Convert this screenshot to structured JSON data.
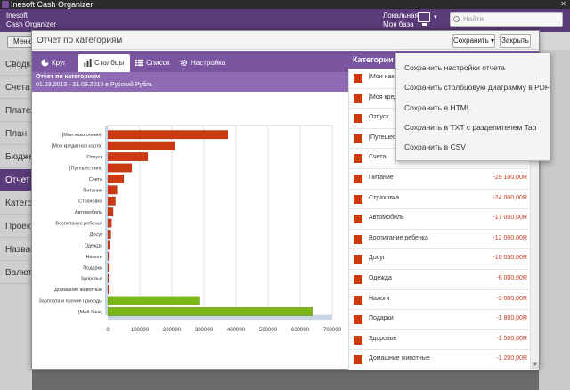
{
  "window": {
    "title": "Inesoft Cash Organizer",
    "close_glyph": "✕"
  },
  "header": {
    "brand_line1": "Inesoft",
    "brand_line2": "Cash Organizer",
    "db_line1": "Локальная",
    "db_line2": "Моя база",
    "search_placeholder": "Найти"
  },
  "menu_label": "Меню",
  "sidebar": [
    "Сводка",
    "Счета",
    "Платежи",
    "План",
    "Бюджет",
    "Отчет",
    "Категории",
    "Проекты",
    "Названия",
    "Валюта"
  ],
  "sidebar_active": 5,
  "dialog": {
    "title": "Отчет по категориям",
    "save_label": "Сохранить",
    "close_label": "Закрыть",
    "tabs": [
      "Круг",
      "Столбцы",
      "Список",
      "Настройка"
    ],
    "active_tab": 1,
    "info_title": "Отчет по категориям",
    "info_period": "01.03.2013 - 31.03.2013 в Русский Рубль",
    "list_header": "Категории"
  },
  "save_menu": [
    "Сохранить настройки отчета",
    "Сохранить столбцовую диаграмму в PDF",
    "Сохранить в HTML",
    "Сохранить в TXT с разделителем Tab",
    "Сохранить в CSV"
  ],
  "categories_list": [
    {
      "name": "[Мои накопления]",
      "amount": ""
    },
    {
      "name": "[Моя кредитная карта]",
      "amount": ""
    },
    {
      "name": "Отпуск",
      "amount": ""
    },
    {
      "name": "[Путешествия]",
      "amount": ""
    },
    {
      "name": "Счета",
      "amount": ""
    },
    {
      "name": "Питание",
      "amount": "-29 100,00R"
    },
    {
      "name": "Страховка",
      "amount": "-24 000,00R"
    },
    {
      "name": "Автомобиль",
      "amount": "-17 000,00R"
    },
    {
      "name": "Воспитание ребенка",
      "amount": "-12 000,00R"
    },
    {
      "name": "Досуг",
      "amount": "-10 050,00R"
    },
    {
      "name": "Одежда",
      "amount": "-6 000,00R"
    },
    {
      "name": "Налоги",
      "amount": "-3 000,00R"
    },
    {
      "name": "Подарки",
      "amount": "-1 800,00R"
    },
    {
      "name": "Здоровье",
      "amount": "-1 500,00R"
    },
    {
      "name": "Домашние животные",
      "amount": "-1 200,00R"
    }
  ],
  "colors": {
    "expense": "#cc3a12",
    "income": "#7cb518",
    "accent": "#5a3a78",
    "tab": "#7a55a0"
  },
  "chart_data": {
    "type": "bar",
    "orientation": "horizontal",
    "categories": [
      "[Мои накопления]",
      "[Моя кредитная карта]",
      "Отпуск",
      "[Путешествия]",
      "Счета",
      "Питание",
      "Страховка",
      "Автомобиль",
      "Воспитание ребенка",
      "Досуг",
      "Одежда",
      "Налоги",
      "Подарки",
      "Здоровье",
      "Домашние животные",
      "Зарплата и прочие приходы",
      "[Мой банк]"
    ],
    "values": [
      375000,
      210000,
      125000,
      75000,
      50000,
      29100,
      24000,
      17000,
      12000,
      10050,
      6000,
      3000,
      1800,
      1500,
      1200,
      285000,
      640000
    ],
    "bar_kind": [
      "expense",
      "expense",
      "expense",
      "expense",
      "expense",
      "expense",
      "expense",
      "expense",
      "expense",
      "expense",
      "expense",
      "expense",
      "expense",
      "expense",
      "expense",
      "income",
      "income"
    ],
    "xticks": [
      0,
      100000,
      200000,
      300000,
      400000,
      500000,
      600000,
      700000
    ],
    "xlim": [
      0,
      700000
    ],
    "grid": true
  }
}
